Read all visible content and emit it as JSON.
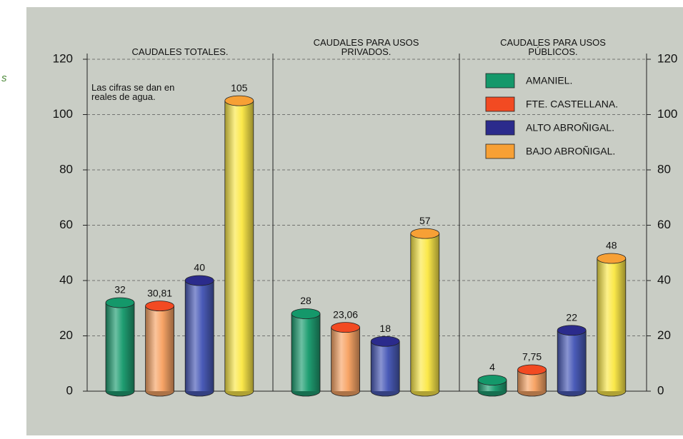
{
  "chart_data": {
    "type": "bar",
    "edge_text": "s",
    "annotation": "Las cifras se dan en\nreales de agua.",
    "categories": [
      "CAUDALES TOTALES.",
      "CAUDALES PARA USOS\nPRIVADOS.",
      "CAUDALES PARA USOS\nPÚBLICOS."
    ],
    "series": [
      {
        "name": "AMANIEL.",
        "color": "#14986a",
        "bar_color": "#1f9e72",
        "values": [
          32,
          28,
          4
        ]
      },
      {
        "name": "FTE. CASTELLANA.",
        "color": "#f24a22",
        "bar_color": "#f7a466",
        "values": [
          30.81,
          23.06,
          7.75
        ],
        "value_labels": [
          "30,81",
          "23,06",
          "7,75"
        ]
      },
      {
        "name": "ALTO ABROÑIGAL.",
        "color": "#2b2b8c",
        "bar_color": "#4a5bb8",
        "values": [
          40,
          18,
          22
        ]
      },
      {
        "name": "BAJO ABROÑIGAL.",
        "color": "#f7a035",
        "bar_color": "#fbe84a",
        "values": [
          105,
          57,
          48
        ]
      }
    ],
    "ylim": [
      0,
      120
    ],
    "yticks": [
      0,
      20,
      40,
      60,
      80,
      100,
      120
    ],
    "grid": true
  }
}
